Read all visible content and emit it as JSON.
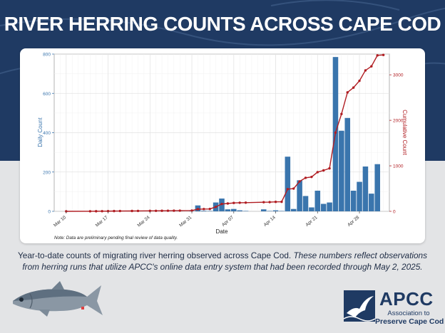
{
  "header": {
    "title": "RIVER HERRING COUNTS ACROSS CAPE COD"
  },
  "caption": {
    "plain": "Year-to-date counts of migrating river herring observed across Cape Cod. ",
    "italic": "These numbers reflect observations from herring runs that utilize APCC's online data entry system that had been recorded through May 2, 2025."
  },
  "logo": {
    "name": "APCC",
    "line1": "Association to",
    "line2": "Preserve Cape Cod"
  },
  "colors": {
    "bar": "#3a75ad",
    "line": "#b01c21",
    "band": "#1f3a63"
  },
  "chart_data": {
    "type": "bar+line",
    "xlabel": "Date",
    "ylabel_left": "Daily Count",
    "ylabel_right": "Cumulative Count",
    "note": "Note: Data are preliminary pending final review of data quality.",
    "xlim": [
      "2025-03-08",
      "2025-05-03"
    ],
    "ylim_left": [
      0,
      800
    ],
    "ylim_right": [
      0,
      3456
    ],
    "yticks_left": [
      "0",
      "200",
      "400",
      "600",
      "800"
    ],
    "yticks_right": [
      "0",
      "1000",
      "2000",
      "3000"
    ],
    "xticks": [
      {
        "date": "2025-03-10",
        "label": "Mar 10"
      },
      {
        "date": "2025-03-17",
        "label": "Mar 17"
      },
      {
        "date": "2025-03-24",
        "label": "Mar 24"
      },
      {
        "date": "2025-03-31",
        "label": "Mar 31"
      },
      {
        "date": "2025-04-07",
        "label": "Apr 07"
      },
      {
        "date": "2025-04-14",
        "label": "Apr 14"
      },
      {
        "date": "2025-04-21",
        "label": "Apr 21"
      },
      {
        "date": "2025-04-28",
        "label": "Apr 28"
      }
    ],
    "series": [
      {
        "name": "Daily Count",
        "kind": "bar",
        "points": [
          [
            "2025-03-10",
            0
          ],
          [
            "2025-03-14",
            1
          ],
          [
            "2025-03-15",
            1
          ],
          [
            "2025-03-16",
            1
          ],
          [
            "2025-03-17",
            1
          ],
          [
            "2025-03-18",
            2
          ],
          [
            "2025-03-19",
            1
          ],
          [
            "2025-03-21",
            1
          ],
          [
            "2025-03-22",
            1
          ],
          [
            "2025-03-24",
            1
          ],
          [
            "2025-03-25",
            1
          ],
          [
            "2025-03-26",
            1
          ],
          [
            "2025-03-27",
            1
          ],
          [
            "2025-03-28",
            1
          ],
          [
            "2025-03-29",
            1
          ],
          [
            "2025-03-31",
            2
          ],
          [
            "2025-04-01",
            30
          ],
          [
            "2025-04-02",
            3
          ],
          [
            "2025-04-03",
            2
          ],
          [
            "2025-04-04",
            45
          ],
          [
            "2025-04-05",
            65
          ],
          [
            "2025-04-06",
            10
          ],
          [
            "2025-04-07",
            12
          ],
          [
            "2025-04-08",
            5
          ],
          [
            "2025-04-09",
            2
          ],
          [
            "2025-04-12",
            10
          ],
          [
            "2025-04-13",
            2
          ],
          [
            "2025-04-14",
            5
          ],
          [
            "2025-04-15",
            2
          ],
          [
            "2025-04-16",
            278
          ],
          [
            "2025-04-17",
            12
          ],
          [
            "2025-04-18",
            158
          ],
          [
            "2025-04-19",
            78
          ],
          [
            "2025-04-20",
            20
          ],
          [
            "2025-04-21",
            105
          ],
          [
            "2025-04-22",
            38
          ],
          [
            "2025-04-23",
            45
          ],
          [
            "2025-04-24",
            785
          ],
          [
            "2025-04-25",
            410
          ],
          [
            "2025-04-26",
            475
          ],
          [
            "2025-04-27",
            105
          ],
          [
            "2025-04-28",
            150
          ],
          [
            "2025-04-29",
            228
          ],
          [
            "2025-04-30",
            90
          ],
          [
            "2025-05-01",
            240
          ]
        ]
      },
      {
        "name": "Cumulative Count",
        "kind": "line",
        "points": [
          [
            "2025-03-10",
            0
          ],
          [
            "2025-03-14",
            1
          ],
          [
            "2025-03-15",
            2
          ],
          [
            "2025-03-16",
            3
          ],
          [
            "2025-03-17",
            4
          ],
          [
            "2025-03-18",
            6
          ],
          [
            "2025-03-19",
            7
          ],
          [
            "2025-03-21",
            8
          ],
          [
            "2025-03-22",
            9
          ],
          [
            "2025-03-24",
            10
          ],
          [
            "2025-03-25",
            11
          ],
          [
            "2025-03-26",
            12
          ],
          [
            "2025-03-27",
            13
          ],
          [
            "2025-03-28",
            14
          ],
          [
            "2025-03-29",
            15
          ],
          [
            "2025-03-31",
            17
          ],
          [
            "2025-04-01",
            47
          ],
          [
            "2025-04-02",
            50
          ],
          [
            "2025-04-03",
            52
          ],
          [
            "2025-04-04",
            97
          ],
          [
            "2025-04-05",
            162
          ],
          [
            "2025-04-06",
            172
          ],
          [
            "2025-04-07",
            184
          ],
          [
            "2025-04-08",
            189
          ],
          [
            "2025-04-09",
            191
          ],
          [
            "2025-04-12",
            201
          ],
          [
            "2025-04-13",
            203
          ],
          [
            "2025-04-14",
            208
          ],
          [
            "2025-04-15",
            210
          ],
          [
            "2025-04-16",
            488
          ],
          [
            "2025-04-17",
            500
          ],
          [
            "2025-04-18",
            658
          ],
          [
            "2025-04-19",
            736
          ],
          [
            "2025-04-20",
            756
          ],
          [
            "2025-04-21",
            861
          ],
          [
            "2025-04-22",
            899
          ],
          [
            "2025-04-23",
            944
          ],
          [
            "2025-04-24",
            1729
          ],
          [
            "2025-04-25",
            2139
          ],
          [
            "2025-04-26",
            2614
          ],
          [
            "2025-04-27",
            2719
          ],
          [
            "2025-04-28",
            2869
          ],
          [
            "2025-04-29",
            3097
          ],
          [
            "2025-04-30",
            3187
          ],
          [
            "2025-05-01",
            3427
          ],
          [
            "2025-05-02",
            3437
          ]
        ]
      }
    ]
  }
}
